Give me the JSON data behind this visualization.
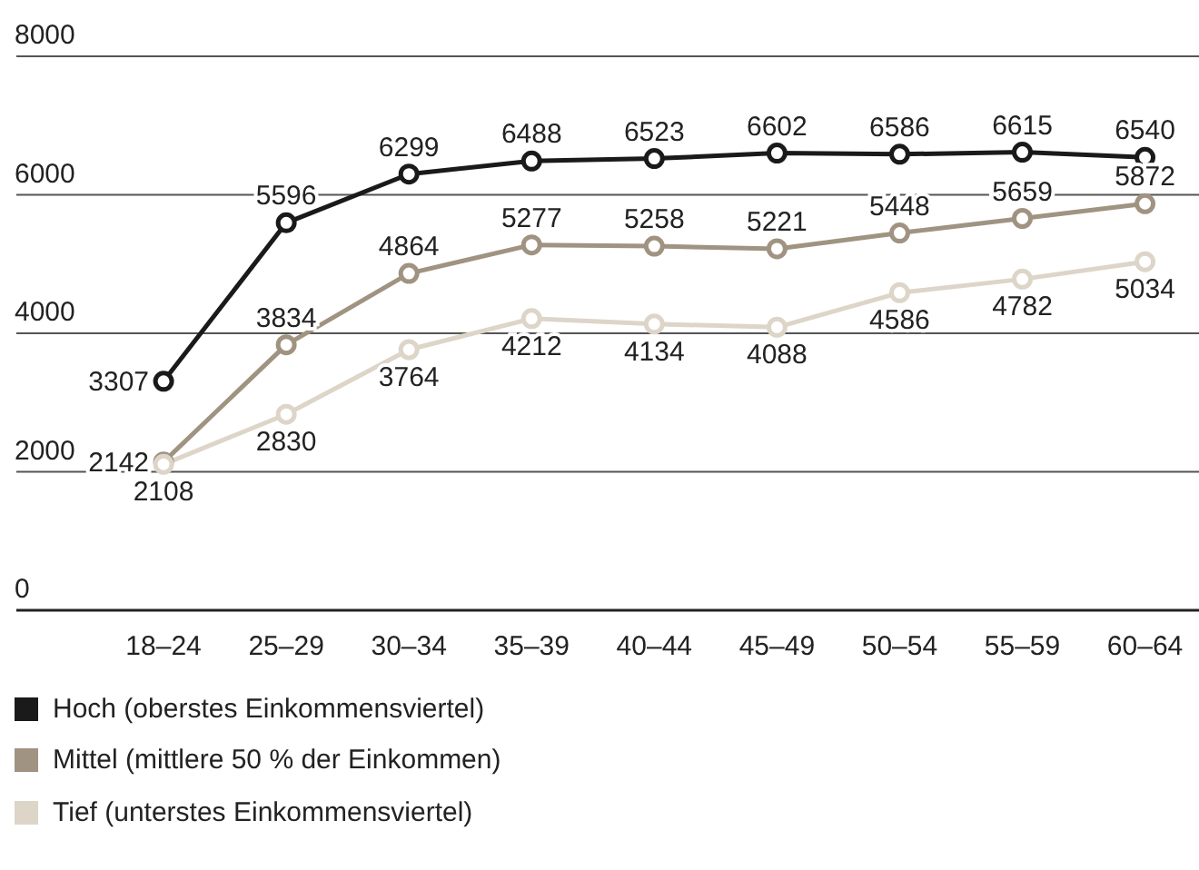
{
  "chart_data": {
    "type": "line",
    "categories": [
      "18–24",
      "25–29",
      "30–34",
      "35–39",
      "40–44",
      "45–49",
      "50–54",
      "55–59",
      "60–64"
    ],
    "series": [
      {
        "name": "Hoch (oberstes Einkommensviertel)",
        "color": "#1a1a1a",
        "values": [
          3307,
          5596,
          6299,
          6488,
          6523,
          6602,
          6586,
          6615,
          6540
        ]
      },
      {
        "name": "Mittel (mittlere 50 % der Einkommen)",
        "color": "#a09381",
        "values": [
          2142,
          3834,
          4864,
          5277,
          5258,
          5221,
          5448,
          5659,
          5872
        ]
      },
      {
        "name": "Tief (unterstes Einkommensviertel)",
        "color": "#ddd5c8",
        "values": [
          2108,
          2830,
          3764,
          4212,
          4134,
          4088,
          4586,
          4782,
          5034
        ]
      }
    ],
    "ylim": [
      0,
      8000
    ],
    "yticks": [
      0,
      2000,
      4000,
      6000,
      8000
    ],
    "grid": "y",
    "legend": "bottom",
    "marker": "circle",
    "line_style": "solid",
    "data_labels": true
  }
}
